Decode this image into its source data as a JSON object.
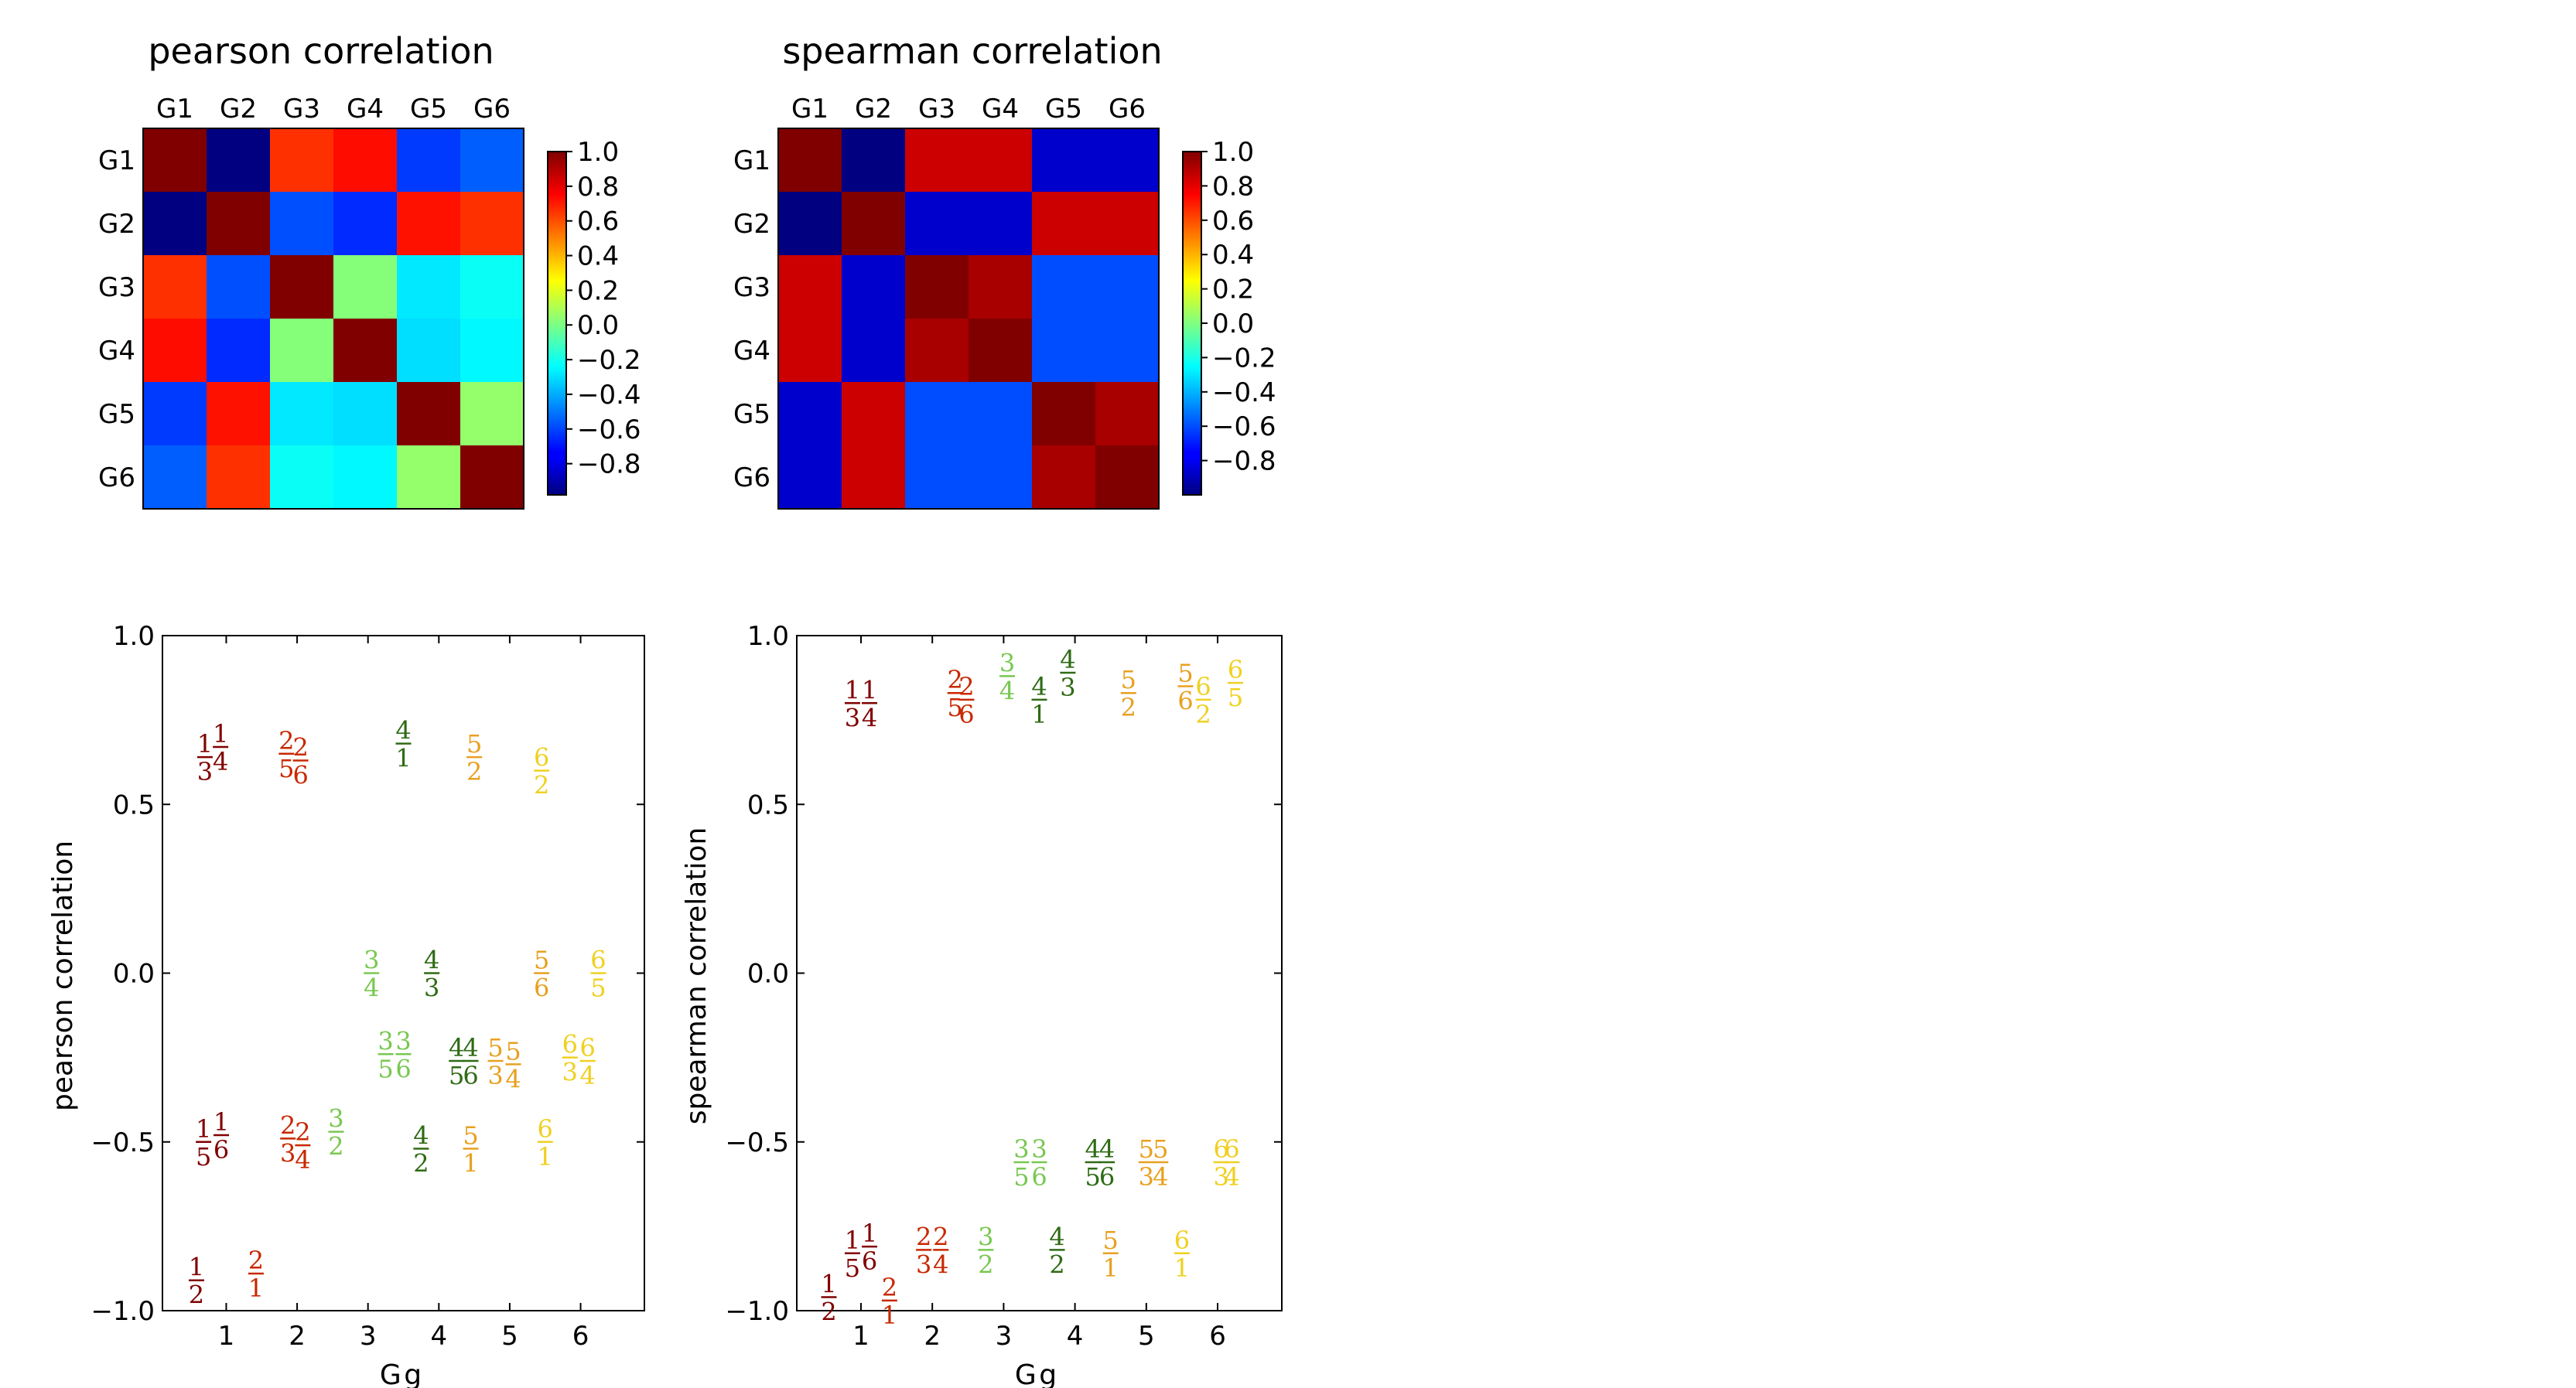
{
  "chart_data": [
    {
      "type": "heatmap",
      "title": "pearson correlation",
      "rows": [
        "G1",
        "G2",
        "G3",
        "G4",
        "G5",
        "G6"
      ],
      "cols": [
        "G1",
        "G2",
        "G3",
        "G4",
        "G5",
        "G6"
      ],
      "values": [
        [
          1.0,
          -0.98,
          0.66,
          0.73,
          -0.62,
          -0.55
        ],
        [
          -0.98,
          1.0,
          -0.58,
          -0.65,
          0.72,
          0.66
        ],
        [
          0.66,
          -0.58,
          1.0,
          0.02,
          -0.28,
          -0.22
        ],
        [
          0.73,
          -0.65,
          0.02,
          1.0,
          -0.3,
          -0.25
        ],
        [
          -0.62,
          0.72,
          -0.28,
          -0.3,
          1.0,
          0.05
        ],
        [
          -0.55,
          0.66,
          -0.22,
          -0.25,
          0.05,
          1.0
        ]
      ],
      "colorbar_ticks": [
        "1.0",
        "0.8",
        "0.6",
        "0.4",
        "0.2",
        "0.0",
        "−0.2",
        "−0.4",
        "−0.6",
        "−0.8"
      ],
      "vmin": -0.98,
      "vmax": 1.0,
      "colormap": "jet"
    },
    {
      "type": "heatmap",
      "title": "spearman correlation",
      "rows": [
        "G1",
        "G2",
        "G3",
        "G4",
        "G5",
        "G6"
      ],
      "cols": [
        "G1",
        "G2",
        "G3",
        "G4",
        "G5",
        "G6"
      ],
      "values": [
        [
          1.0,
          -1.0,
          0.85,
          0.85,
          -0.85,
          -0.85
        ],
        [
          -1.0,
          1.0,
          -0.85,
          -0.85,
          0.85,
          0.85
        ],
        [
          0.85,
          -0.85,
          1.0,
          0.92,
          -0.6,
          -0.6
        ],
        [
          0.85,
          -0.85,
          0.92,
          1.0,
          -0.6,
          -0.6
        ],
        [
          -0.85,
          0.85,
          -0.6,
          -0.6,
          1.0,
          0.92
        ],
        [
          -0.85,
          0.85,
          -0.6,
          -0.6,
          0.92,
          1.0
        ]
      ],
      "colorbar_ticks": [
        "1.0",
        "0.8",
        "0.6",
        "0.4",
        "0.2",
        "0.0",
        "−0.2",
        "−0.4",
        "−0.6",
        "−0.8"
      ],
      "vmin": -1.0,
      "vmax": 1.0,
      "colormap": "jet"
    },
    {
      "type": "scatter",
      "xlabel": "G g",
      "ylabel": "pearson correlation",
      "xlim": [
        0.1,
        6.9
      ],
      "ylim": [
        -1.0,
        1.0
      ],
      "xticks": [
        "1",
        "2",
        "3",
        "4",
        "5",
        "6"
      ],
      "yticks": [
        "1.0",
        "0.5",
        "0.0",
        "−0.5",
        "−1.0"
      ],
      "points": [
        {
          "x": 0.7,
          "y": 0.64,
          "num": "1",
          "den": "3",
          "g": 1
        },
        {
          "x": 0.92,
          "y": 0.67,
          "num": "1",
          "den": "4",
          "g": 1
        },
        {
          "x": 0.68,
          "y": -0.5,
          "num": "1",
          "den": "5",
          "g": 1
        },
        {
          "x": 0.93,
          "y": -0.48,
          "num": "1",
          "den": "6",
          "g": 1
        },
        {
          "x": 0.58,
          "y": -0.91,
          "num": "1",
          "den": "2",
          "g": 1
        },
        {
          "x": 1.42,
          "y": -0.89,
          "num": "2",
          "den": "1",
          "g": 2
        },
        {
          "x": 1.85,
          "y": 0.65,
          "num": "2",
          "den": "5",
          "g": 2
        },
        {
          "x": 2.05,
          "y": 0.63,
          "num": "2",
          "den": "6",
          "g": 2
        },
        {
          "x": 1.87,
          "y": -0.49,
          "num": "2",
          "den": "3",
          "g": 2
        },
        {
          "x": 2.08,
          "y": -0.51,
          "num": "2",
          "den": "4",
          "g": 2
        },
        {
          "x": 2.55,
          "y": -0.47,
          "num": "3",
          "den": "2",
          "g": 3
        },
        {
          "x": 3.05,
          "y": 0.0,
          "num": "3",
          "den": "4",
          "g": 3
        },
        {
          "x": 3.25,
          "y": -0.24,
          "num": "3",
          "den": "5",
          "g": 3
        },
        {
          "x": 3.5,
          "y": -0.24,
          "num": "3",
          "den": "6",
          "g": 3
        },
        {
          "x": 3.5,
          "y": 0.68,
          "num": "4",
          "den": "1",
          "g": 4
        },
        {
          "x": 3.9,
          "y": 0.0,
          "num": "4",
          "den": "3",
          "g": 4
        },
        {
          "x": 4.25,
          "y": -0.26,
          "num": "4",
          "den": "5",
          "g": 4
        },
        {
          "x": 4.45,
          "y": -0.26,
          "num": "4",
          "den": "6",
          "g": 4
        },
        {
          "x": 3.75,
          "y": -0.52,
          "num": "4",
          "den": "2",
          "g": 4
        },
        {
          "x": 4.5,
          "y": 0.64,
          "num": "5",
          "den": "2",
          "g": 5
        },
        {
          "x": 5.45,
          "y": 0.0,
          "num": "5",
          "den": "6",
          "g": 5
        },
        {
          "x": 4.8,
          "y": -0.26,
          "num": "5",
          "den": "3",
          "g": 5
        },
        {
          "x": 5.05,
          "y": -0.27,
          "num": "5",
          "den": "4",
          "g": 5
        },
        {
          "x": 4.45,
          "y": -0.52,
          "num": "5",
          "den": "1",
          "g": 5
        },
        {
          "x": 5.45,
          "y": 0.6,
          "num": "6",
          "den": "2",
          "g": 6
        },
        {
          "x": 6.25,
          "y": 0.0,
          "num": "6",
          "den": "5",
          "g": 6
        },
        {
          "x": 5.85,
          "y": -0.25,
          "num": "6",
          "den": "3",
          "g": 6
        },
        {
          "x": 6.1,
          "y": -0.26,
          "num": "6",
          "den": "4",
          "g": 6
        },
        {
          "x": 5.5,
          "y": -0.5,
          "num": "6",
          "den": "1",
          "g": 6
        }
      ]
    },
    {
      "type": "scatter",
      "xlabel": "G g",
      "ylabel": "spearman correlation",
      "xlim": [
        0.1,
        6.9
      ],
      "ylim": [
        -1.0,
        1.0
      ],
      "xticks": [
        "1",
        "2",
        "3",
        "4",
        "5",
        "6"
      ],
      "yticks": [
        "1.0",
        "0.5",
        "0.0",
        "−0.5",
        "−1.0"
      ],
      "points": [
        {
          "x": 0.88,
          "y": 0.8,
          "num": "1",
          "den": "3",
          "g": 1
        },
        {
          "x": 1.12,
          "y": 0.8,
          "num": "1",
          "den": "4",
          "g": 1
        },
        {
          "x": 0.88,
          "y": -0.83,
          "num": "1",
          "den": "5",
          "g": 1
        },
        {
          "x": 1.12,
          "y": -0.81,
          "num": "1",
          "den": "6",
          "g": 1
        },
        {
          "x": 0.55,
          "y": -0.96,
          "num": "1",
          "den": "2",
          "g": 1
        },
        {
          "x": 1.4,
          "y": -0.97,
          "num": "2",
          "den": "1",
          "g": 2
        },
        {
          "x": 2.32,
          "y": 0.83,
          "num": "2",
          "den": "5",
          "g": 2
        },
        {
          "x": 2.48,
          "y": 0.81,
          "num": "2",
          "den": "6",
          "g": 2
        },
        {
          "x": 1.88,
          "y": -0.82,
          "num": "2",
          "den": "3",
          "g": 2
        },
        {
          "x": 2.12,
          "y": -0.82,
          "num": "2",
          "den": "4",
          "g": 2
        },
        {
          "x": 2.75,
          "y": -0.82,
          "num": "3",
          "den": "2",
          "g": 3
        },
        {
          "x": 3.05,
          "y": 0.88,
          "num": "3",
          "den": "4",
          "g": 3
        },
        {
          "x": 3.25,
          "y": -0.56,
          "num": "3",
          "den": "5",
          "g": 3
        },
        {
          "x": 3.5,
          "y": -0.56,
          "num": "3",
          "den": "6",
          "g": 3
        },
        {
          "x": 3.5,
          "y": 0.81,
          "num": "4",
          "den": "1",
          "g": 4
        },
        {
          "x": 3.9,
          "y": 0.89,
          "num": "4",
          "den": "3",
          "g": 4
        },
        {
          "x": 4.25,
          "y": -0.56,
          "num": "4",
          "den": "5",
          "g": 4
        },
        {
          "x": 4.45,
          "y": -0.56,
          "num": "4",
          "den": "6",
          "g": 4
        },
        {
          "x": 3.75,
          "y": -0.82,
          "num": "4",
          "den": "2",
          "g": 4
        },
        {
          "x": 4.75,
          "y": 0.83,
          "num": "5",
          "den": "2",
          "g": 5
        },
        {
          "x": 5.55,
          "y": 0.85,
          "num": "5",
          "den": "6",
          "g": 5
        },
        {
          "x": 5.0,
          "y": -0.56,
          "num": "5",
          "den": "3",
          "g": 5
        },
        {
          "x": 5.2,
          "y": -0.56,
          "num": "5",
          "den": "4",
          "g": 5
        },
        {
          "x": 4.5,
          "y": -0.83,
          "num": "5",
          "den": "1",
          "g": 5
        },
        {
          "x": 5.8,
          "y": 0.81,
          "num": "6",
          "den": "2",
          "g": 6
        },
        {
          "x": 6.25,
          "y": 0.86,
          "num": "6",
          "den": "5",
          "g": 6
        },
        {
          "x": 6.05,
          "y": -0.56,
          "num": "6",
          "den": "3",
          "g": 6
        },
        {
          "x": 6.2,
          "y": -0.56,
          "num": "6",
          "den": "4",
          "g": 6
        },
        {
          "x": 5.5,
          "y": -0.83,
          "num": "6",
          "den": "1",
          "g": 6
        }
      ]
    }
  ],
  "group_colors": {
    "1": "#800000",
    "2": "#c82800",
    "3": "#78c850",
    "4": "#2e6b14",
    "5": "#e8a020",
    "6": "#f0d020"
  }
}
